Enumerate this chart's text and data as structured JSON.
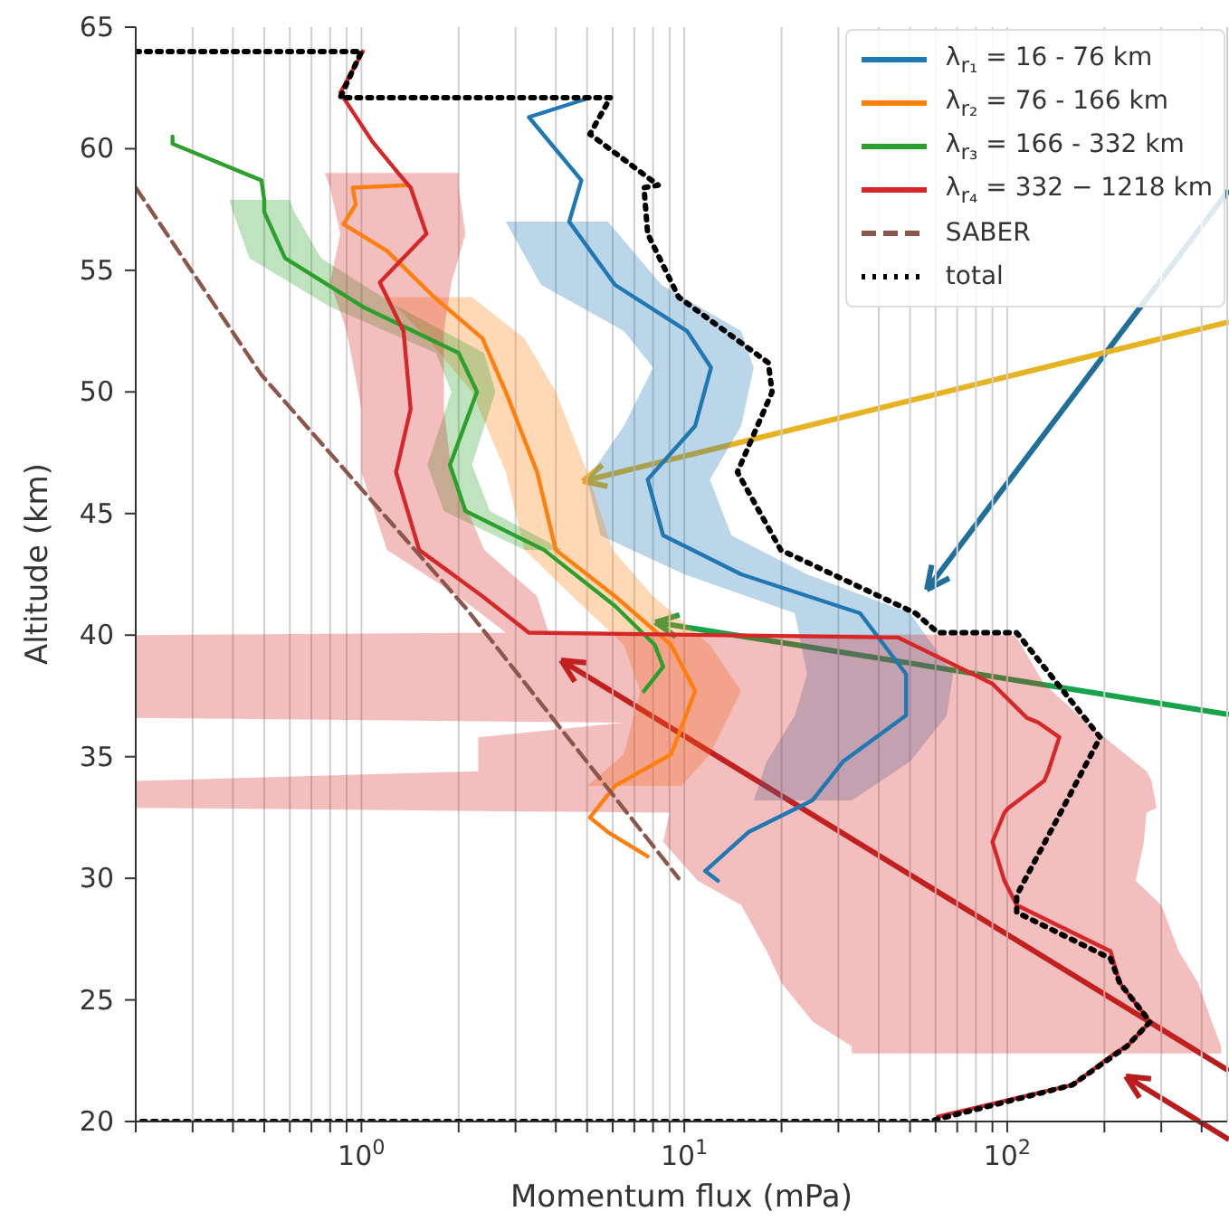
{
  "chart_data": {
    "type": "line",
    "orientation": "horizontal",
    "xlabel": "Momentum flux (mPa)",
    "ylabel": "Altitude (km)",
    "log": "x",
    "grid": "x",
    "legend": "top right",
    "marker": "none",
    "line_style": "solid",
    "xlim": [
      0.2,
      480
    ],
    "ylim": [
      20,
      65
    ],
    "xticks": [
      {
        "value": 0.2,
        "label": null
      },
      {
        "value": 0.3,
        "label": null
      },
      {
        "value": 0.4,
        "label": null
      },
      {
        "value": 0.5,
        "label": null
      },
      {
        "value": 0.6,
        "label": null
      },
      {
        "value": 0.7,
        "label": null
      },
      {
        "value": 0.8,
        "label": null
      },
      {
        "value": 0.9,
        "label": null
      },
      {
        "value": 1,
        "label": "10$^{0}$"
      },
      {
        "value": 2,
        "label": null
      },
      {
        "value": 3,
        "label": null
      },
      {
        "value": 4,
        "label": null
      },
      {
        "value": 5,
        "label": null
      },
      {
        "value": 6,
        "label": null
      },
      {
        "value": 7,
        "label": null
      },
      {
        "value": 8,
        "label": null
      },
      {
        "value": 9,
        "label": null
      },
      {
        "value": 10,
        "label": "10$^{1}$"
      },
      {
        "value": 20,
        "label": null
      },
      {
        "value": 30,
        "label": null
      },
      {
        "value": 40,
        "label": null
      },
      {
        "value": 50,
        "label": null
      },
      {
        "value": 60,
        "label": null
      },
      {
        "value": 70,
        "label": null
      },
      {
        "value": 80,
        "label": null
      },
      {
        "value": 90,
        "label": null
      },
      {
        "value": 100,
        "label": "10$^{2}$"
      },
      {
        "value": 200,
        "label": null
      },
      {
        "value": 300,
        "label": null
      },
      {
        "value": 400,
        "label": null
      }
    ],
    "yticks": [
      20,
      25,
      30,
      35,
      40,
      45,
      50,
      55,
      60,
      65
    ],
    "series": [
      {
        "name": "λ$_{r₁}$ = 16 - 76 km",
        "color": "#1f77b4",
        "x": [
          62.1,
          61.3,
          58.7,
          57,
          54.4,
          52.5,
          51,
          48.6,
          46.4,
          44.1,
          42.5,
          40.9,
          38.4,
          36.7,
          34.8,
          33.2,
          31.9,
          30.3,
          29.9
        ],
        "values": [
          5.1,
          3.3,
          4.8,
          4.4,
          6.1,
          10.2,
          12.1,
          10.8,
          7.7,
          8.6,
          15,
          35,
          48.6,
          48.6,
          31,
          24.9,
          15.8,
          11.6,
          12.7
        ],
        "lower": [
          null,
          null,
          null,
          2.8,
          3.6,
          6.5,
          8,
          6.5,
          5,
          5.5,
          10,
          22,
          24,
          22,
          18,
          16.4,
          null,
          null,
          null
        ],
        "upper": [
          null,
          null,
          null,
          5.8,
          8.5,
          15,
          16.4,
          15,
          12,
          14,
          24,
          50,
          68,
          65,
          50,
          33,
          null,
          null,
          null
        ]
      },
      {
        "name": "λ$_{r₂}$ = 76 - 166 km",
        "color": "#ff7f0e",
        "x": [
          58.5,
          58.4,
          57.7,
          56.9,
          55.8,
          53.9,
          52.2,
          50,
          46.7,
          43.5,
          41.6,
          39.6,
          37.7,
          35.1,
          33.8,
          32.5,
          31.9,
          30.9
        ],
        "values": [
          1.38,
          0.94,
          0.96,
          0.88,
          1.2,
          1.68,
          2.37,
          2.8,
          3.5,
          4,
          6.1,
          9.1,
          10.8,
          9.1,
          6.1,
          5.1,
          5.8,
          7.7
        ],
        "lower": [
          null,
          null,
          null,
          null,
          null,
          1.2,
          1.6,
          2.2,
          2.8,
          3.2,
          4.5,
          6.5,
          7.3,
          6.5,
          5,
          null,
          null,
          null
        ],
        "upper": [
          null,
          null,
          null,
          null,
          null,
          2.2,
          3.2,
          4,
          5,
          6,
          8,
          12,
          15,
          12,
          9.8,
          null,
          null,
          null
        ]
      },
      {
        "name": "λ$_{r₃}$ = 166 - 332 km",
        "color": "#2ca02c",
        "x": [
          60.5,
          60.2,
          58.7,
          57.9,
          57.4,
          55.5,
          53.5,
          51.6,
          50,
          47,
          45.1,
          43.5,
          41.2,
          39.6,
          38.7,
          37.7
        ],
        "values": [
          0.26,
          0.26,
          0.49,
          0.5,
          0.5,
          0.58,
          1.01,
          2,
          2.28,
          1.88,
          2.1,
          3.68,
          6.1,
          8.1,
          8.6,
          7.5
        ],
        "lower": [
          null,
          null,
          null,
          0.39,
          0.4,
          0.45,
          0.8,
          1.7,
          1.9,
          1.6,
          1.8,
          3.2,
          null,
          null,
          null,
          null
        ],
        "upper": [
          null,
          null,
          null,
          0.6,
          0.62,
          0.75,
          1.3,
          2.4,
          2.6,
          2.2,
          2.5,
          4.2,
          null,
          null,
          null,
          null
        ]
      },
      {
        "name": "λ$_{r₄}$ = 332 − 1218 km",
        "color": "#d62728",
        "x": [
          64,
          62.3,
          60.3,
          59,
          58.4,
          56.5,
          54.5,
          52.5,
          49.3,
          46.7,
          43.5,
          41.6,
          40.1,
          40,
          39.9,
          38,
          36.6,
          36.4,
          35.8,
          34.4,
          34,
          32.9,
          32.7,
          31.5,
          29.9,
          28.9,
          27,
          25.7,
          24.1,
          23.1,
          22.8,
          21.5,
          20.2
        ],
        "values": [
          1.01,
          0.86,
          1.08,
          1.3,
          1.42,
          1.59,
          1.14,
          1.35,
          1.42,
          1.28,
          1.51,
          2.37,
          3.3,
          null,
          46,
          90,
          115,
          125,
          145,
          134,
          130,
          101,
          98,
          90,
          98,
          107,
          209,
          223,
          277,
          235,
          215,
          159,
          61
        ],
        "lower": [
          null,
          null,
          null,
          0.77,
          0.8,
          0.86,
          0.8,
          0.9,
          1,
          1,
          1.2,
          2,
          2.8,
          0.2,
          0.2,
          0.2,
          0.2,
          6.5,
          2.3,
          2.3,
          0.2,
          0.2,
          9,
          8.6,
          11,
          15,
          18,
          20,
          25,
          33,
          33,
          null,
          null
        ],
        "upper": [
          null,
          null,
          null,
          2,
          2,
          2.1,
          1.9,
          1.8,
          1.8,
          1.9,
          2.4,
          3.5,
          3.8,
          107,
          107,
          130,
          170,
          175,
          200,
          270,
          280,
          290,
          270,
          265,
          250,
          300,
          340,
          390,
          430,
          460,
          460,
          null,
          null
        ]
      },
      {
        "name": "SABER",
        "color": "#8c564b",
        "line_style": "dashed",
        "x": [
          58.4,
          50.7,
          41.1,
          30
        ],
        "values": [
          0.2,
          0.49,
          2.11,
          9.6
        ]
      },
      {
        "name": "total",
        "color": "#000000",
        "line_style": "dotted",
        "x": [
          64,
          64,
          62.1,
          62.1,
          60.6,
          58.5,
          58.4,
          56.5,
          53.9,
          51.2,
          50,
          46.7,
          43.5,
          40.9,
          40.1,
          40.1,
          35.8,
          32.9,
          29.3,
          28.6,
          26.7,
          25.7,
          24.1,
          23.1,
          21.5,
          20,
          20
        ],
        "values": [
          0.2,
          1,
          0.86,
          5.9,
          5.1,
          8.3,
          7.5,
          7.7,
          9.6,
          18.2,
          18.7,
          14.6,
          19.9,
          52,
          61,
          107,
          194,
          149,
          107,
          107,
          209,
          223,
          277,
          235,
          159,
          57,
          0.2
        ]
      }
    ]
  }
}
